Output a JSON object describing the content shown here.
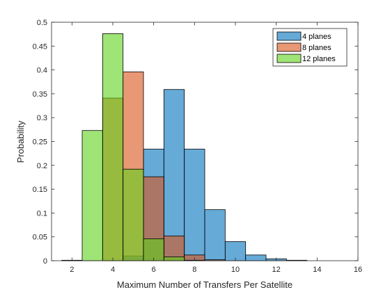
{
  "chart_data": {
    "type": "bar",
    "subtype": "overlaid-histogram",
    "xlabel": "Maximum Number of Transfers Per Satellite",
    "ylabel": "Probability",
    "xlim": [
      1,
      16
    ],
    "ylim": [
      0,
      0.5
    ],
    "xticks": [
      2,
      4,
      6,
      8,
      10,
      12,
      14,
      16
    ],
    "yticks": [
      0,
      0.05,
      0.1,
      0.15,
      0.2,
      0.25,
      0.3,
      0.35,
      0.4,
      0.45,
      0.5
    ],
    "ytick_labels": [
      "0",
      "0.05",
      "0.1",
      "0.15",
      "0.2",
      "0.25",
      "0.3",
      "0.35",
      "0.4",
      "0.45",
      "0.5"
    ],
    "bin_width": 1,
    "grid": false,
    "legend_position": "top-right",
    "series": [
      {
        "name": "4 planes",
        "color": "#0072BD",
        "face_alpha": 0.6,
        "bins": [
          {
            "x0": 1.5,
            "value": 0.001
          },
          {
            "x0": 2.5,
            "value": 0.0
          },
          {
            "x0": 3.5,
            "value": 0.0
          },
          {
            "x0": 4.5,
            "value": 0.01
          },
          {
            "x0": 5.5,
            "value": 0.234
          },
          {
            "x0": 6.5,
            "value": 0.359
          },
          {
            "x0": 7.5,
            "value": 0.234
          },
          {
            "x0": 8.5,
            "value": 0.107
          },
          {
            "x0": 9.5,
            "value": 0.04
          },
          {
            "x0": 10.5,
            "value": 0.012
          },
          {
            "x0": 11.5,
            "value": 0.004
          },
          {
            "x0": 12.5,
            "value": 0.001
          }
        ]
      },
      {
        "name": "8 planes",
        "color": "#D95319",
        "face_alpha": 0.6,
        "bins": [
          {
            "x0": 2.5,
            "value": 0.0
          },
          {
            "x0": 3.5,
            "value": 0.341
          },
          {
            "x0": 4.5,
            "value": 0.396
          },
          {
            "x0": 5.5,
            "value": 0.176
          },
          {
            "x0": 6.5,
            "value": 0.052
          },
          {
            "x0": 7.5,
            "value": 0.012
          },
          {
            "x0": 8.5,
            "value": 0.002
          }
        ]
      },
      {
        "name": "12 planes",
        "color": "#77AC30",
        "color_render": "#5fd21a",
        "face_alpha": 0.6,
        "bins": [
          {
            "x0": 2.5,
            "value": 0.273
          },
          {
            "x0": 3.5,
            "value": 0.476
          },
          {
            "x0": 4.5,
            "value": 0.192
          },
          {
            "x0": 5.5,
            "value": 0.046
          },
          {
            "x0": 6.5,
            "value": 0.008
          },
          {
            "x0": 7.5,
            "value": 0.001
          }
        ]
      }
    ]
  }
}
